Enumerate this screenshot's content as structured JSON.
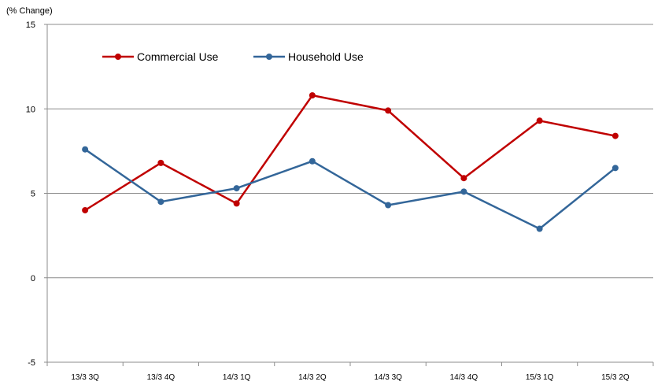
{
  "chart_data": {
    "type": "line",
    "ylabel": "(% Change)",
    "categories": [
      "13/3 3Q",
      "13/3 4Q",
      "14/3 1Q",
      "14/3 2Q",
      "14/3 3Q",
      "14/3 4Q",
      "15/3 1Q",
      "15/3 2Q"
    ],
    "ylim": [
      -5,
      15
    ],
    "yticks": [
      -5,
      0,
      5,
      10,
      15
    ],
    "grid": true,
    "legend_position": "top-left",
    "series": [
      {
        "name": "Commercial Use",
        "color": "#c00000",
        "values": [
          4.0,
          6.8,
          4.4,
          10.8,
          9.9,
          5.9,
          9.3,
          8.4
        ]
      },
      {
        "name": "Household Use",
        "color": "#336699",
        "values": [
          7.6,
          4.5,
          5.3,
          6.9,
          4.3,
          5.1,
          2.9,
          6.5
        ]
      }
    ]
  }
}
